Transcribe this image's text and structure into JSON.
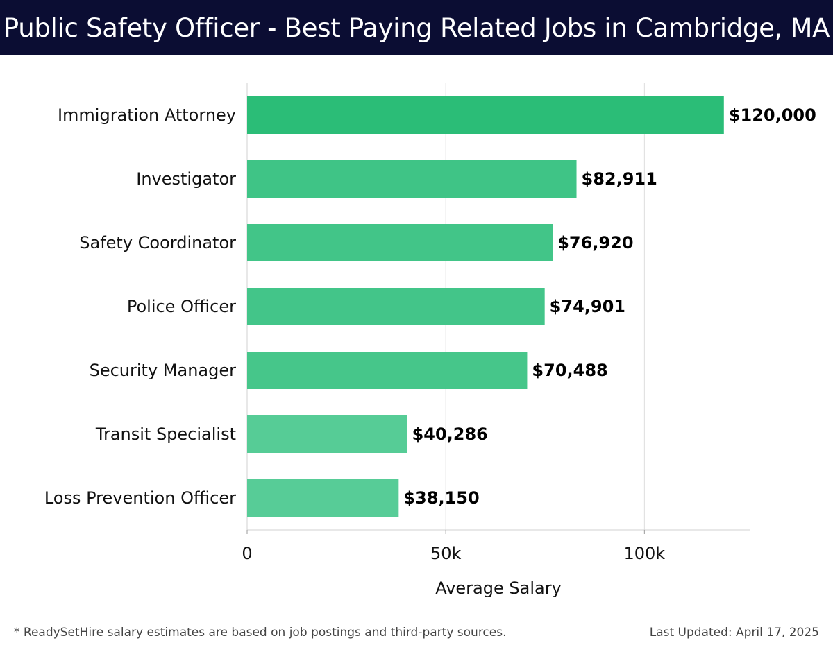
{
  "header": {
    "title": "Public Safety Officer - Best Paying Related Jobs in Cambridge, MA"
  },
  "footer": {
    "note": "* ReadySetHire salary estimates are based on job postings and third-party sources.",
    "updated": "Last Updated: April 17, 2025"
  },
  "colors": {
    "header_bg": "#0b0d33",
    "bar_dark": "#2bbd77",
    "bar_light": "#57cc97"
  },
  "chart_data": {
    "type": "bar",
    "orientation": "horizontal",
    "categories": [
      "Immigration Attorney",
      "Investigator",
      "Safety Coordinator",
      "Police Officer",
      "Security Manager",
      "Transit Specialist",
      "Loss Prevention Officer"
    ],
    "values": [
      120000,
      82911,
      76920,
      74901,
      70488,
      40286,
      38150
    ],
    "value_labels": [
      "$120,000",
      "$82,911",
      "$76,920",
      "$74,901",
      "$70,488",
      "$40,286",
      "$38,150"
    ],
    "xlabel": "Average Salary",
    "ylabel": "",
    "xlim": [
      0,
      126500
    ],
    "xticks": [
      0,
      50000,
      100000
    ],
    "xtick_labels": [
      "0",
      "50k",
      "100k"
    ],
    "grid": "vertical"
  }
}
